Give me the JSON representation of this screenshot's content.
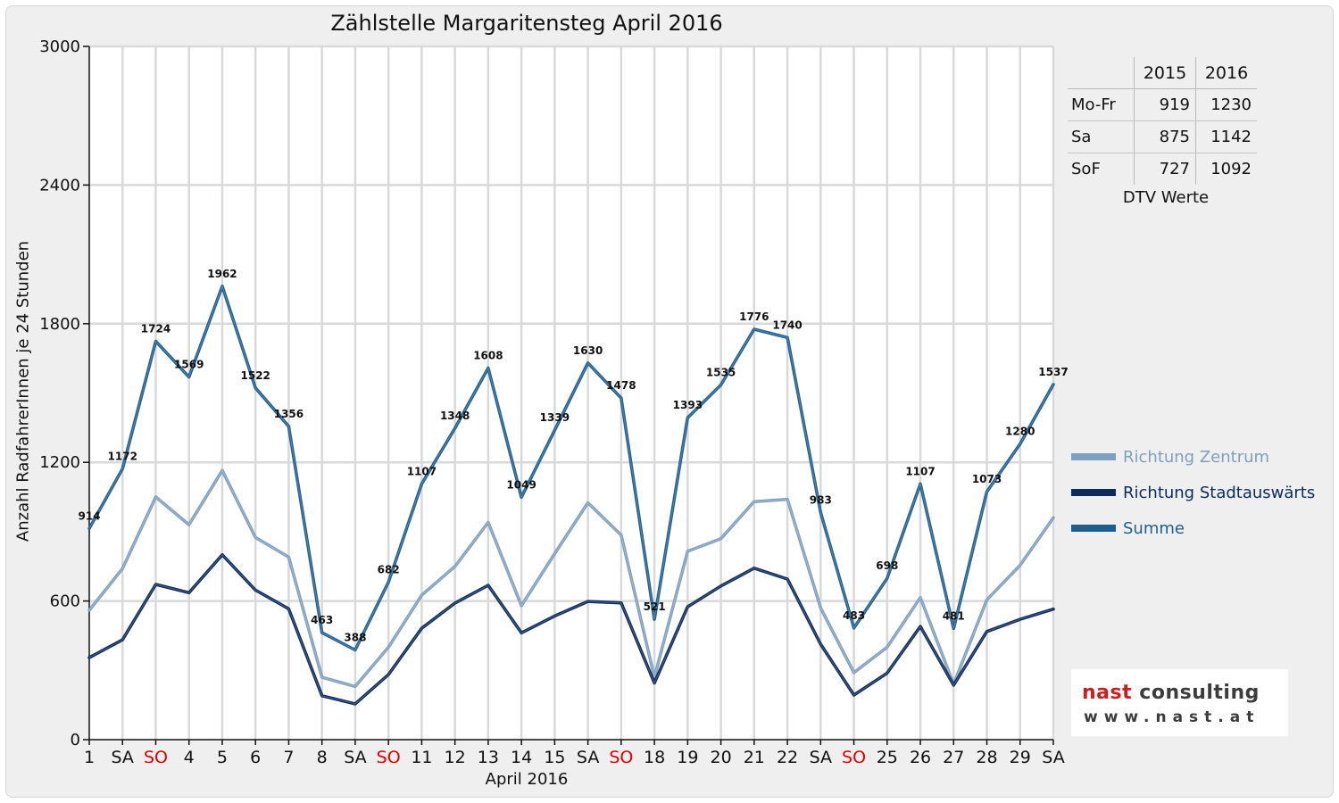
{
  "chart_data": {
    "type": "line",
    "title": "Zählstelle Margaritensteg April 2016",
    "xlabel": "April 2016",
    "ylabel": "Anzahl RadfahrerInnen je 24 Stunden",
    "ylim": [
      0,
      3000
    ],
    "yticks": [
      0,
      600,
      1200,
      1800,
      2400,
      3000
    ],
    "categories": [
      "1",
      "SA",
      "SO",
      "4",
      "5",
      "6",
      "7",
      "8",
      "SA",
      "SO",
      "11",
      "12",
      "13",
      "14",
      "15",
      "SA",
      "SO",
      "18",
      "19",
      "20",
      "21",
      "22",
      "SA",
      "SO",
      "25",
      "26",
      "27",
      "28",
      "29",
      "SA"
    ],
    "sunday_indices": [
      2,
      9,
      16,
      23
    ],
    "grid": true,
    "legend_position": "right",
    "series": [
      {
        "name": "Richtung Zentrum",
        "color": "#7f9fbf",
        "values": [
          560,
          740,
          1050,
          930,
          1165,
          875,
          790,
          270,
          230,
          400,
          625,
          750,
          940,
          580,
          805,
          1025,
          885,
          270,
          815,
          870,
          1030,
          1040,
          570,
          290,
          400,
          615,
          240,
          605,
          755,
          960
        ]
      },
      {
        "name": "Richtung Stadtauswärts",
        "color": "#0d2b5a",
        "values": [
          355,
          432,
          672,
          636,
          800,
          647,
          566,
          190,
          155,
          282,
          482,
          591,
          668,
          462,
          535,
          598,
          592,
          245,
          575,
          665,
          742,
          695,
          413,
          193,
          288,
          490,
          236,
          468,
          521,
          565
        ]
      },
      {
        "name": "Summe",
        "color": "#1f5f8f",
        "values": [
          914,
          1172,
          1724,
          1569,
          1962,
          1522,
          1356,
          463,
          388,
          682,
          1107,
          1348,
          1608,
          1049,
          1339,
          1630,
          1478,
          521,
          1393,
          1535,
          1776,
          1740,
          983,
          483,
          698,
          1107,
          481,
          1073,
          1280,
          1537
        ],
        "labels": [
          "914",
          "1172",
          "1724",
          "1569",
          "1962",
          "1522",
          "1356",
          "463",
          "388",
          "682",
          "1107",
          "1348",
          "1608",
          "1049",
          "1339",
          "1630",
          "1478",
          "521",
          "1393",
          "1535",
          "1776",
          "1740",
          "983",
          "483",
          "698",
          "1107",
          "481",
          "1073",
          "1280",
          "1537"
        ]
      }
    ]
  },
  "dtv_table": {
    "years": [
      "2015",
      "2016"
    ],
    "rows": [
      {
        "label": "Mo-Fr",
        "v2015": "919",
        "v2016": "1230"
      },
      {
        "label": "Sa",
        "v2015": "875",
        "v2016": "1142"
      },
      {
        "label": "SoF",
        "v2015": "727",
        "v2016": "1092"
      }
    ],
    "caption": "DTV Werte"
  },
  "logo": {
    "line1a": "nast",
    "line1b": "consulting",
    "line2": "www.nast.at"
  },
  "colors": {
    "sunday": "#e00000",
    "grid": "#d9d9d9"
  }
}
